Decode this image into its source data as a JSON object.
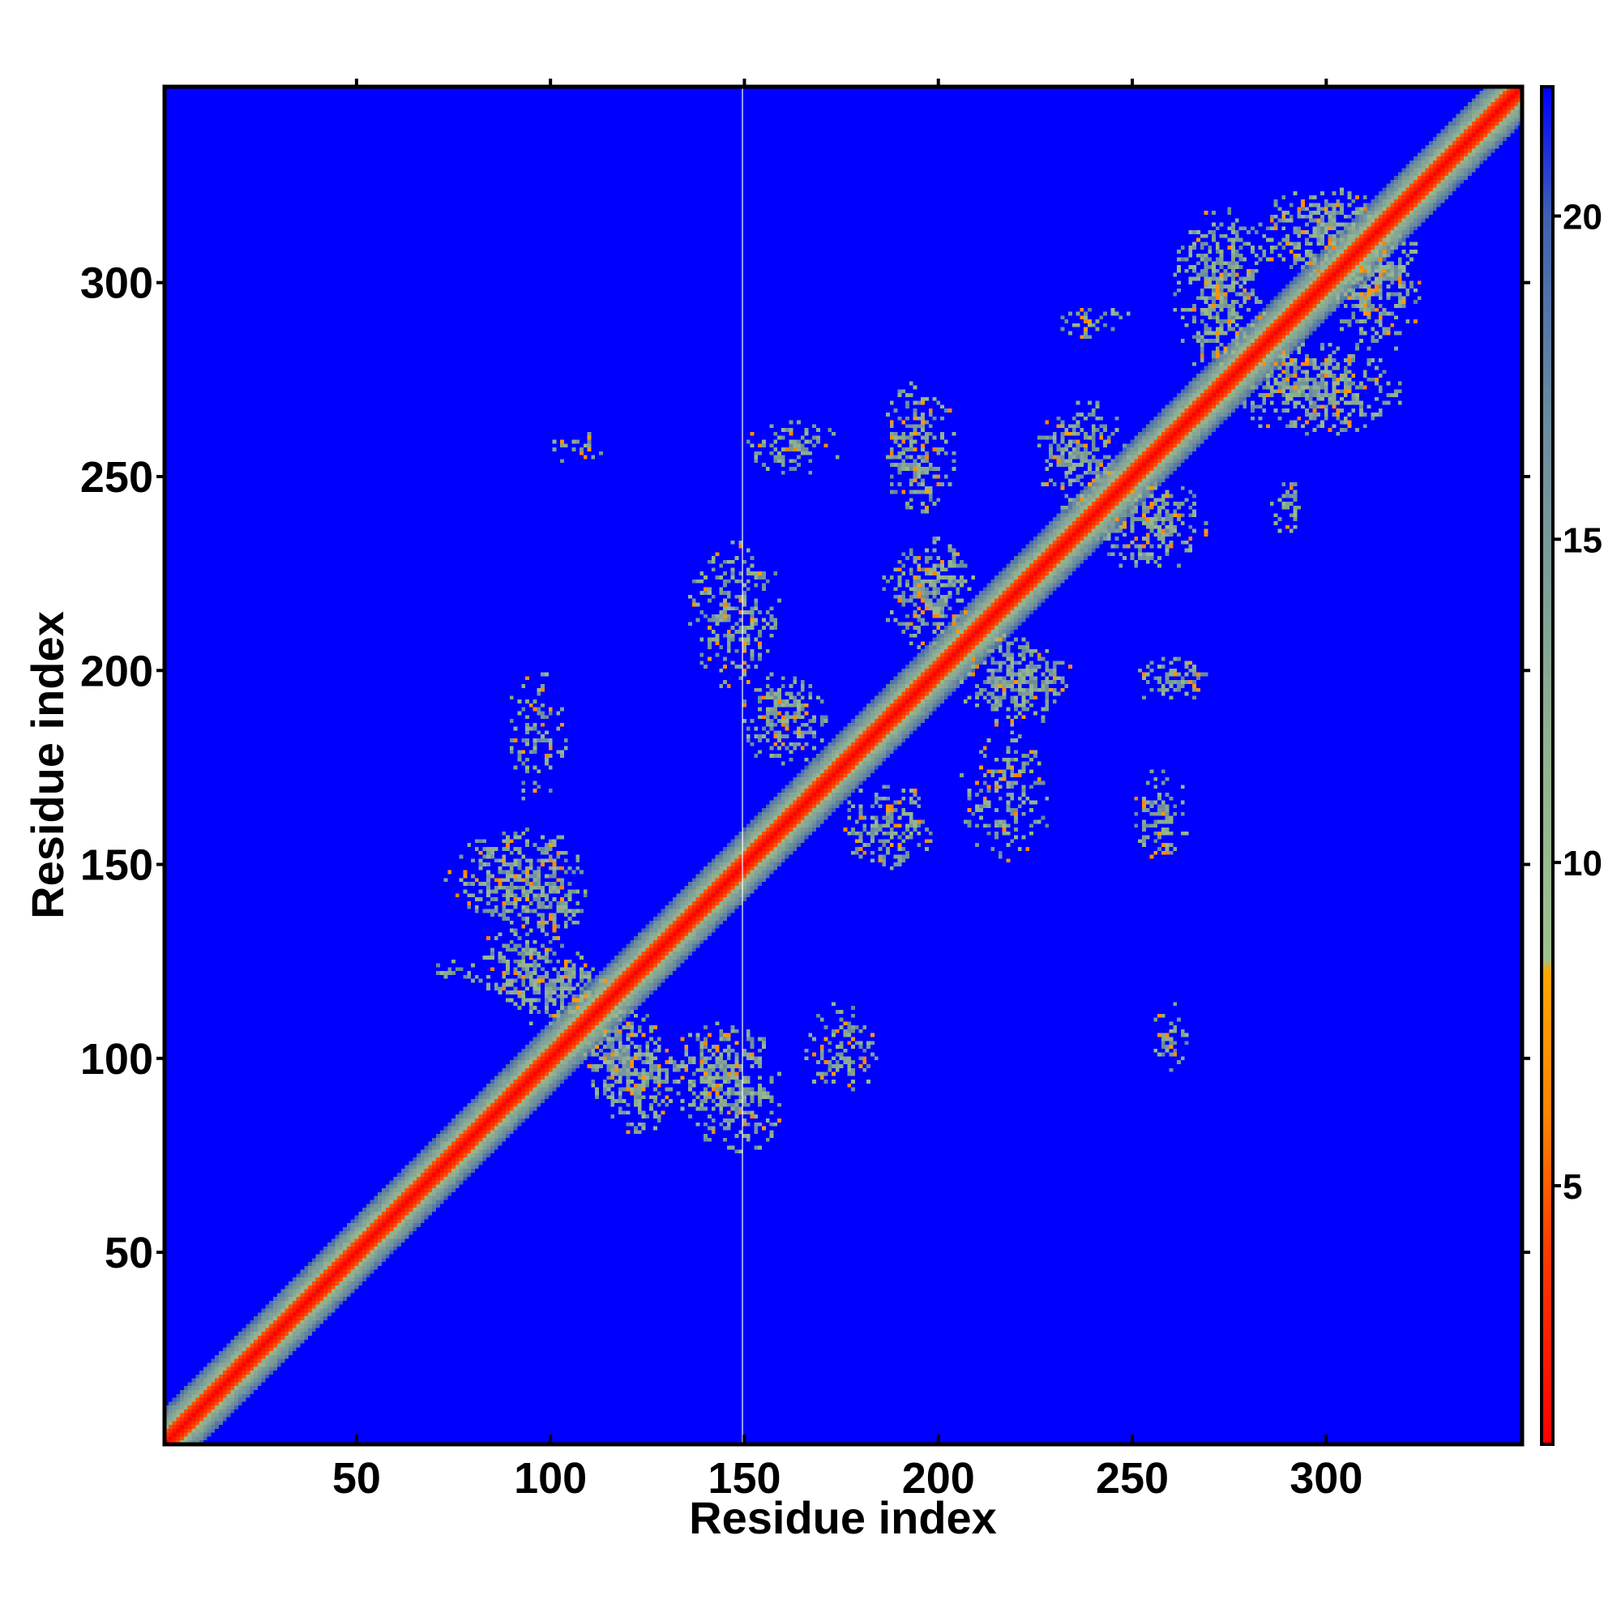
{
  "chart_data": {
    "type": "heatmap",
    "title": "",
    "xlabel": "Residue index",
    "ylabel": "Residue index",
    "xlim": [
      1,
      350
    ],
    "ylim": [
      1,
      350
    ],
    "x_ticks": [
      50,
      100,
      150,
      200,
      250,
      300
    ],
    "y_ticks": [
      50,
      100,
      150,
      200,
      250,
      300
    ],
    "grid": false,
    "background_value": 22,
    "colorbar": {
      "range": [
        1,
        22
      ],
      "ticks": [
        5,
        10,
        15,
        20
      ],
      "placement": "right",
      "stops": [
        {
          "value": 1,
          "color": "#ff0000"
        },
        {
          "value": 4,
          "color": "#ff3a00"
        },
        {
          "value": 6,
          "color": "#ff8000"
        },
        {
          "value": 8.3,
          "color": "#ffa500"
        },
        {
          "value": 8.5,
          "color": "#a0c090"
        },
        {
          "value": 12,
          "color": "#90b090"
        },
        {
          "value": 17,
          "color": "#6a8aa0"
        },
        {
          "value": 20,
          "color": "#4060b0"
        },
        {
          "value": 22,
          "color": "#0000ff"
        }
      ]
    },
    "diagonal_band": {
      "core_width": 3,
      "halo_width": 9
    },
    "contact_regions": [
      {
        "x": [
          82,
          110
        ],
        "y": [
          128,
          160
        ],
        "intensity": 0.8
      },
      {
        "x": [
          128,
          160
        ],
        "y": [
          82,
          110
        ],
        "intensity": 0.8
      },
      {
        "x": [
          85,
          115
        ],
        "y": [
          108,
          130
        ],
        "intensity": 0.85
      },
      {
        "x": [
          108,
          130
        ],
        "y": [
          85,
          115
        ],
        "intensity": 0.85
      },
      {
        "x": [
          112,
          135
        ],
        "y": [
          80,
          105
        ],
        "intensity": 0.75
      },
      {
        "x": [
          80,
          105
        ],
        "y": [
          112,
          135
        ],
        "intensity": 0.75
      },
      {
        "x": [
          135,
          160
        ],
        "y": [
          75,
          102
        ],
        "intensity": 0.7
      },
      {
        "x": [
          75,
          102
        ],
        "y": [
          135,
          160
        ],
        "intensity": 0.7
      },
      {
        "x": [
          148,
          172
        ],
        "y": [
          175,
          200
        ],
        "intensity": 0.7
      },
      {
        "x": [
          175,
          200
        ],
        "y": [
          148,
          172
        ],
        "intensity": 0.7
      },
      {
        "x": [
          185,
          210
        ],
        "y": [
          205,
          235
        ],
        "intensity": 0.8
      },
      {
        "x": [
          205,
          235
        ],
        "y": [
          185,
          210
        ],
        "intensity": 0.8
      },
      {
        "x": [
          225,
          250
        ],
        "y": [
          240,
          270
        ],
        "intensity": 0.75
      },
      {
        "x": [
          240,
          270
        ],
        "y": [
          225,
          250
        ],
        "intensity": 0.75
      },
      {
        "x": [
          260,
          285
        ],
        "y": [
          275,
          320
        ],
        "intensity": 0.8
      },
      {
        "x": [
          275,
          320
        ],
        "y": [
          260,
          285
        ],
        "intensity": 0.8
      },
      {
        "x": [
          300,
          325
        ],
        "y": [
          280,
          320
        ],
        "intensity": 0.75
      },
      {
        "x": [
          280,
          320
        ],
        "y": [
          300,
          325
        ],
        "intensity": 0.75
      },
      {
        "x": [
          150,
          175
        ],
        "y": [
          250,
          265
        ],
        "intensity": 0.6
      },
      {
        "x": [
          250,
          265
        ],
        "y": [
          150,
          175
        ],
        "intensity": 0.6
      },
      {
        "x": [
          100,
          115
        ],
        "y": [
          253,
          262
        ],
        "intensity": 0.4
      },
      {
        "x": [
          185,
          205
        ],
        "y": [
          240,
          275
        ],
        "intensity": 0.65
      },
      {
        "x": [
          230,
          250
        ],
        "y": [
          285,
          295
        ],
        "intensity": 0.5
      },
      {
        "x": [
          285,
          295
        ],
        "y": [
          235,
          250
        ],
        "intensity": 0.5
      },
      {
        "x": [
          255,
          265
        ],
        "y": [
          95,
          115
        ],
        "intensity": 0.5
      },
      {
        "x": [
          165,
          185
        ],
        "y": [
          90,
          115
        ],
        "intensity": 0.5
      },
      {
        "x": [
          88,
          105
        ],
        "y": [
          165,
          200
        ],
        "intensity": 0.45
      },
      {
        "x": [
          68,
          82
        ],
        "y": [
          118,
          126
        ],
        "intensity": 0.35
      },
      {
        "x": [
          70,
          85
        ],
        "y": [
          140,
          150
        ],
        "intensity": 0.35
      },
      {
        "x": [
          135,
          160
        ],
        "y": [
          195,
          235
        ],
        "intensity": 0.55
      },
      {
        "x": [
          205,
          230
        ],
        "y": [
          150,
          185
        ],
        "intensity": 0.55
      },
      {
        "x": [
          250,
          270
        ],
        "y": [
          190,
          205
        ],
        "intensity": 0.55
      }
    ]
  }
}
